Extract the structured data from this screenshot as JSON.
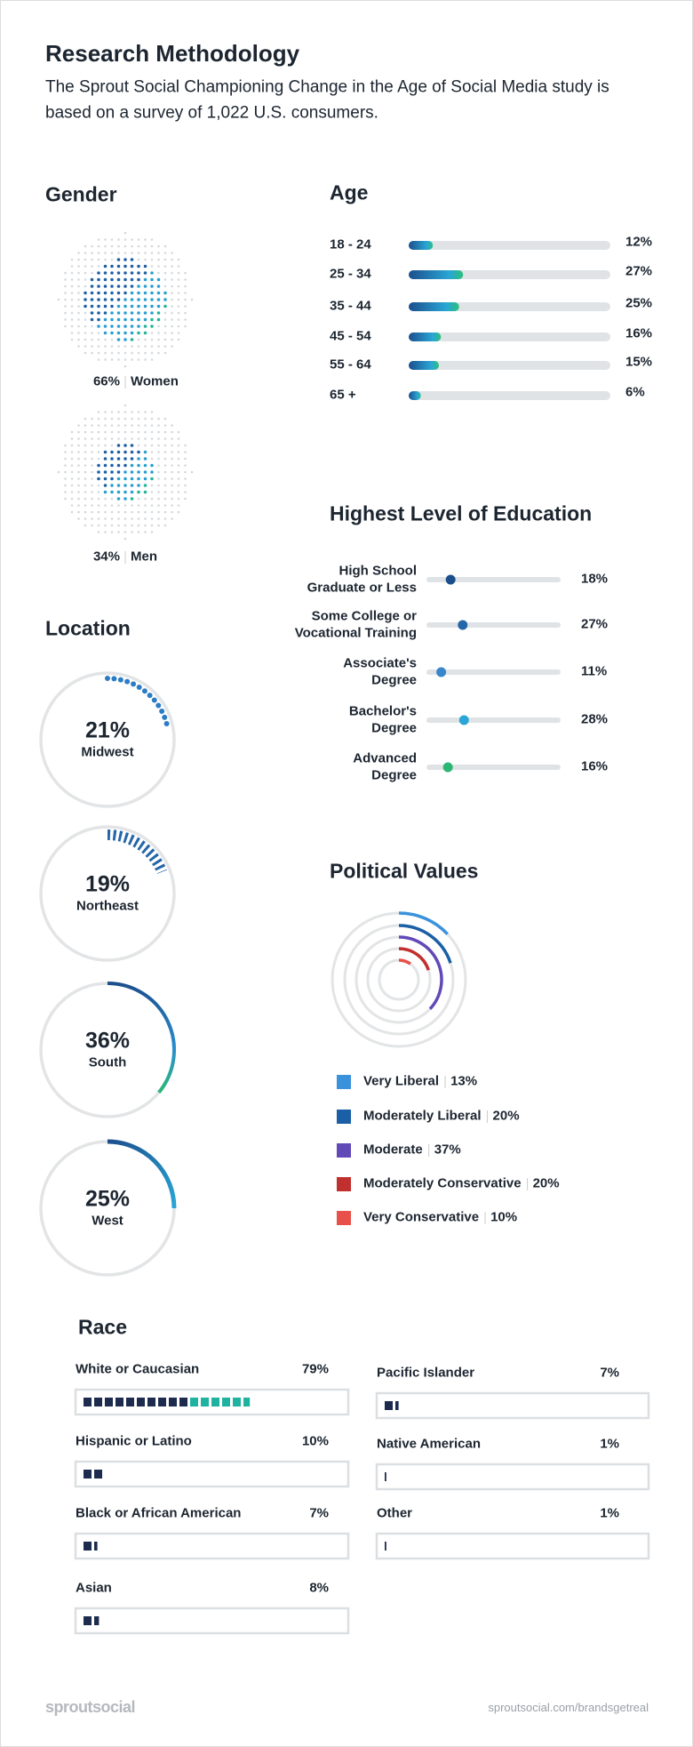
{
  "header": {
    "title": "Research Methodology",
    "subtitle": "The Sprout Social Championing Change in the Age of Social Media study is based on a survey of 1,022 U.S. consumers."
  },
  "chart_data": [
    {
      "type": "dot-circle",
      "title": "Gender",
      "categories": [
        "Women",
        "Men"
      ],
      "values": [
        66,
        34
      ],
      "value_labels": [
        "66%",
        "34%"
      ]
    },
    {
      "type": "bar",
      "title": "Age",
      "categories": [
        "18 - 24",
        "25 - 34",
        "35 - 44",
        "45 - 54",
        "55 - 64",
        "65 +"
      ],
      "values": [
        12,
        27,
        25,
        16,
        15,
        6
      ],
      "value_labels": [
        "12%",
        "27%",
        "25%",
        "16%",
        "15%",
        "6%"
      ],
      "xlim": [
        0,
        100
      ]
    },
    {
      "type": "dot-track",
      "title": "Highest Level of Education",
      "categories": [
        "High School\nGraduate or Less",
        "Some College or\nVocational Training",
        "Associate's\nDegree",
        "Bachelor's\nDegree",
        "Advanced\nDegree"
      ],
      "values": [
        18,
        27,
        11,
        28,
        16
      ],
      "value_labels": [
        "18%",
        "27%",
        "11%",
        "28%",
        "16%"
      ],
      "colors": [
        "#1b4f8c",
        "#2466a8",
        "#3a86cc",
        "#2aa6d6",
        "#2bb673"
      ],
      "xlim": [
        0,
        100
      ]
    },
    {
      "type": "radial",
      "title": "Location",
      "categories": [
        "Midwest",
        "Northeast",
        "South",
        "West"
      ],
      "values": [
        21,
        19,
        36,
        25
      ],
      "value_labels": [
        "21%",
        "19%",
        "36%",
        "25%"
      ]
    },
    {
      "type": "concentric",
      "title": "Political Values",
      "categories": [
        "Very Liberal",
        "Moderately Liberal",
        "Moderate",
        "Moderately Conservative",
        "Very Conservative"
      ],
      "values": [
        13,
        20,
        37,
        20,
        10
      ],
      "value_labels": [
        "13%",
        "20%",
        "37%",
        "20%",
        "10%"
      ],
      "colors": [
        "#3a92dc",
        "#1b5fa6",
        "#6149b8",
        "#c0302f",
        "#e8504a"
      ]
    },
    {
      "type": "square-bar",
      "title": "Race",
      "categories": [
        "White or Caucasian",
        "Hispanic or Latino",
        "Black or African American",
        "Asian",
        "Pacific Islander",
        "Native American",
        "Other"
      ],
      "values": [
        79,
        10,
        7,
        8,
        7,
        1,
        1
      ],
      "value_labels": [
        "79%",
        "10%",
        "7%",
        "8%",
        "7%",
        "1%",
        "1%"
      ]
    }
  ],
  "footer": {
    "logo": "sproutsocial",
    "url": "sproutsocial.com/brandsgetreal"
  }
}
